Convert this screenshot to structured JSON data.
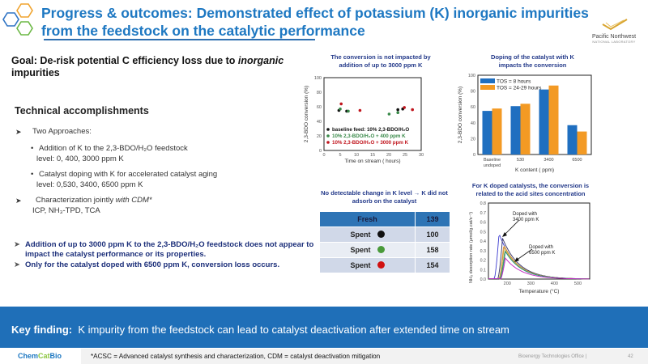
{
  "header": {
    "title": "Progress & outcomes: Demonstrated effect of potassium (K) inorganic impurities from the feedstock on the catalytic performance",
    "org_logo_name": "Pacific Northwest",
    "org_logo_sub": "NATIONAL LABORATORY"
  },
  "left": {
    "goal_prefix": "Goal: De-risk potential C efficiency loss due to ",
    "goal_italic": "inorganic",
    "goal_suffix": " impurities",
    "tech_heading": "Technical accomplishments",
    "approaches_label": "Two Approaches:",
    "approach1_line1": "Addition of K to the 2,3-BDO/H₂O feedstock",
    "approach1_line2": "level: 0, 400, 3000 ppm K",
    "approach2_line1": "Catalyst doping with K for accelerated catalyst aging",
    "approach2_line2": "level: 0,530, 3400, 6500 ppm K",
    "char_line1_prefix": "Characterization jointly ",
    "char_line1_italic": "with CDM*",
    "char_line2": "ICP, NH₃-TPD, TCA",
    "finding1": "Addition of up to 3000 ppm K to the 2,3-BDO/H₂O feedstock does not appear to impact the catalyst performance or its properties.",
    "finding2": "Only for the catalyst doped with 6500 ppm K, conversion loss occurs."
  },
  "chart_data": [
    {
      "type": "scatter",
      "title": "The conversion is not impacted by addition of up to 3000 ppm K",
      "xlabel": "Time on stream ( hours)",
      "ylabel": "2,3-BDO conversion (%)",
      "xlim": [
        0,
        30
      ],
      "ylim": [
        0,
        100
      ],
      "xticks": [
        0,
        5,
        10,
        15,
        20,
        25,
        30
      ],
      "yticks": [
        0,
        20,
        40,
        60,
        80,
        100
      ],
      "legend_position": "bottom-left",
      "series": [
        {
          "name": "baseline feed:  10% 2,3-BDO/H₂O",
          "color": "#111111",
          "points": [
            [
              4.6,
              55
            ],
            [
              7.0,
              54
            ],
            [
              22.8,
              56
            ],
            [
              24.3,
              57
            ]
          ]
        },
        {
          "name": "10% 2,3-BDO/H₂O + 400 ppm K",
          "color": "#3a8a4a",
          "points": [
            [
              5.0,
              57
            ],
            [
              7.5,
              54
            ],
            [
              20.1,
              50
            ],
            [
              22.8,
              52
            ]
          ]
        },
        {
          "name": "10% 2,3-BDO/H₂O + 3000 ppm K",
          "color": "#c0141c",
          "points": [
            [
              5.3,
              64
            ],
            [
              11.1,
              55
            ],
            [
              24.8,
              59
            ],
            [
              27.3,
              56
            ]
          ]
        }
      ]
    },
    {
      "type": "bar",
      "title": "Doping of the catalyst with K impacts the conversion",
      "xlabel": "K content ( ppm)",
      "ylabel": "2,3-BDO conversion (%)",
      "ylim": [
        0,
        100
      ],
      "yticks": [
        0,
        20,
        40,
        60,
        80,
        100
      ],
      "categories": [
        "Baseline undoped",
        "530",
        "3400",
        "6500"
      ],
      "legend_position": "top-left",
      "series": [
        {
          "name": "TOS = 8 hours",
          "color": "#1f6fc0",
          "values": [
            55,
            61,
            82,
            37
          ]
        },
        {
          "name": "TOS = 24-29 hours",
          "color": "#f39a24",
          "values": [
            58,
            64,
            87,
            29
          ]
        }
      ]
    },
    {
      "type": "line",
      "title": "For K doped catalysts, the conversion is related to the acid sites concentration",
      "xlabel": "Temperature (°C)",
      "ylabel": "NH₃ desorption rate (μmol/g.cat/s⁻¹)",
      "xlim": [
        120,
        550
      ],
      "ylim": [
        0,
        0.8
      ],
      "xticks": [
        200,
        300,
        400,
        500
      ],
      "yticks": [
        0.0,
        0.1,
        0.2,
        0.3,
        0.4,
        0.5,
        0.6,
        0.7,
        0.8
      ],
      "annotations": [
        "Doped with 3400 ppm K",
        "Doped with 6500 ppm K"
      ],
      "series": [
        {
          "name": "blue",
          "color": "#3b3bd0",
          "onset": 145,
          "peak_t": 165,
          "peak": 0.48
        },
        {
          "name": "dark",
          "color": "#333366",
          "onset": 160,
          "peak_t": 180,
          "peak": 0.43
        },
        {
          "name": "orange",
          "color": "#e08a2a",
          "onset": 165,
          "peak_t": 185,
          "peak": 0.36
        },
        {
          "name": "tan",
          "color": "#c9a14a",
          "onset": 165,
          "peak_t": 187,
          "peak": 0.34
        },
        {
          "name": "yellow",
          "color": "#d8c84a",
          "onset": 168,
          "peak_t": 190,
          "peak": 0.31
        },
        {
          "name": "green",
          "color": "#5aaa55",
          "onset": 168,
          "peak_t": 190,
          "peak": 0.3
        },
        {
          "name": "teal",
          "color": "#2a8a8a",
          "onset": 170,
          "peak_t": 192,
          "peak": 0.29
        },
        {
          "name": "magenta",
          "color": "#c020c0",
          "onset": 172,
          "peak_t": 192,
          "peak": 0.22
        }
      ]
    }
  ],
  "k_table": {
    "title": "No detectable change in K  level → K did not adsorb on the catalyst",
    "rows": [
      {
        "label": "Fresh",
        "value": "139",
        "dot": ""
      },
      {
        "label": "Spent",
        "value": "100",
        "dot": "#111111"
      },
      {
        "label": "Spent",
        "value": "158",
        "dot": "#4a9a3a"
      },
      {
        "label": "Spent",
        "value": "154",
        "dot": "#d01010"
      }
    ]
  },
  "key_finding": {
    "label": "Key finding:",
    "text": "K impurity from the feedstock can lead to catalyst deactivation after extended time on stream"
  },
  "footer": {
    "brand_a": "Chem",
    "brand_b": "Cat",
    "brand_c": "Bio",
    "footnote": "*ACSC = Advanced catalyst synthesis and characterization, CDM = catalyst deactivation mitigation",
    "office": "Bioenergy Technologies Office  |",
    "page": "42"
  },
  "colors": {
    "title_blue": "#1e78c2",
    "keybar_blue": "#1f6fb8",
    "finding_navy": "#1c2f7a"
  }
}
